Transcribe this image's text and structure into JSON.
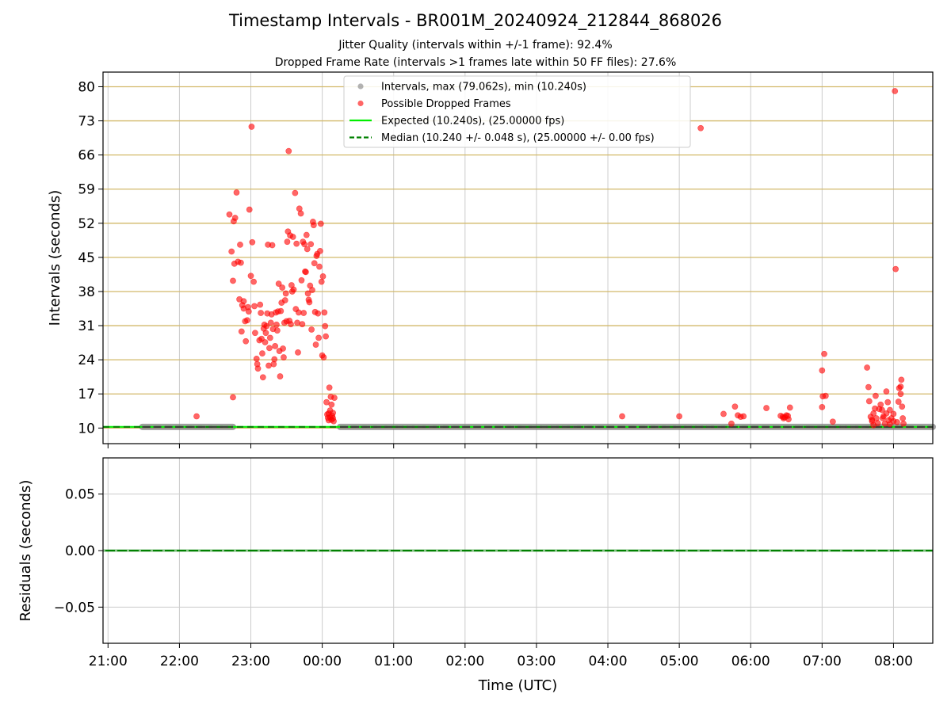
{
  "title": "Timestamp Intervals - BR001M_20240924_212844_868026",
  "subtitle_lines": [
    "Jitter Quality (intervals within +/-1 frame): 92.4%",
    "Dropped Frame Rate (intervals >1 frames late within 50 FF files): 27.6%"
  ],
  "colors": {
    "dropped": "#ff0000",
    "intervals": "#808080",
    "expected": "#00ee00",
    "median": "#008000",
    "hgrid_top": "#d2b96a",
    "grid": "#cccccc",
    "residual_points": "#80c080"
  },
  "chart_data": [
    {
      "type": "scatter",
      "name": "intervals",
      "xlabel": "",
      "ylabel": "Intervals (seconds)",
      "xlim": [
        -0.07,
        11.55
      ],
      "ylim": [
        6.8,
        83
      ],
      "x_ticks": [
        0,
        1,
        2,
        3,
        4,
        5,
        6,
        7,
        8,
        9,
        10,
        11
      ],
      "y_ticks": [
        10,
        17,
        24,
        31,
        38,
        45,
        52,
        59,
        66,
        73,
        80
      ],
      "grid": true,
      "legend_position": "top-center",
      "legend": [
        {
          "kind": "dot",
          "color": "#808080",
          "label": "Intervals, max (79.062s), min (10.240s)"
        },
        {
          "kind": "dot",
          "color": "#ff0000",
          "label": "Possible Dropped Frames"
        },
        {
          "kind": "solid",
          "color": "#00ee00",
          "label": "Expected (10.240s), (25.00000 fps)"
        },
        {
          "kind": "dashed",
          "color": "#008000",
          "label": "Median (10.240 +/- 0.048 s), (25.00000 +/- 0.00 fps)"
        }
      ],
      "expected_value": 10.24,
      "median_value": 10.24,
      "normal_interval_segments": [
        [
          0.48,
          1.75
        ],
        [
          3.25,
          11.55
        ]
      ],
      "series": [
        {
          "name": "Possible Dropped Frames",
          "points": [
            [
              1.24,
              12.4
            ],
            [
              1.75,
              16.3
            ],
            [
              1.7,
              53.8
            ],
            [
              1.73,
              46.2
            ],
            [
              1.78,
              53.1
            ],
            [
              1.8,
              58.3
            ],
            [
              1.76,
              52.4
            ],
            [
              1.75,
              40.2
            ],
            [
              1.77,
              43.7
            ],
            [
              1.82,
              44.1
            ],
            [
              1.86,
              43.9
            ],
            [
              1.85,
              47.6
            ],
            [
              1.84,
              36.4
            ],
            [
              1.88,
              35.2
            ],
            [
              1.9,
              34.5
            ],
            [
              1.87,
              29.8
            ],
            [
              1.92,
              31.9
            ],
            [
              1.93,
              27.8
            ],
            [
              1.95,
              32.1
            ],
            [
              1.9,
              36.0
            ],
            [
              1.96,
              34.8
            ],
            [
              1.97,
              33.9
            ],
            [
              1.98,
              54.8
            ],
            [
              2.0,
              41.2
            ],
            [
              2.02,
              48.1
            ],
            [
              2.01,
              71.8
            ],
            [
              2.04,
              40.0
            ],
            [
              2.05,
              35.0
            ],
            [
              2.06,
              29.5
            ],
            [
              2.08,
              24.2
            ],
            [
              2.09,
              23.1
            ],
            [
              2.1,
              22.2
            ],
            [
              2.12,
              28.0
            ],
            [
              2.13,
              35.3
            ],
            [
              2.14,
              33.6
            ],
            [
              2.15,
              28.3
            ],
            [
              2.16,
              25.3
            ],
            [
              2.17,
              20.4
            ],
            [
              2.18,
              30.4
            ],
            [
              2.19,
              31.2
            ],
            [
              2.2,
              27.6
            ],
            [
              2.21,
              29.5
            ],
            [
              2.22,
              30.9
            ],
            [
              2.23,
              33.5
            ],
            [
              2.24,
              47.6
            ],
            [
              2.25,
              22.8
            ],
            [
              2.26,
              26.4
            ],
            [
              2.27,
              28.5
            ],
            [
              2.28,
              31.6
            ],
            [
              2.29,
              33.3
            ],
            [
              2.3,
              47.5
            ],
            [
              2.31,
              30.3
            ],
            [
              2.32,
              23.1
            ],
            [
              2.33,
              24.1
            ],
            [
              2.34,
              26.8
            ],
            [
              2.35,
              33.7
            ],
            [
              2.36,
              31.2
            ],
            [
              2.37,
              30.0
            ],
            [
              2.38,
              33.9
            ],
            [
              2.39,
              39.6
            ],
            [
              2.4,
              25.8
            ],
            [
              2.41,
              20.6
            ],
            [
              2.42,
              34.0
            ],
            [
              2.43,
              35.7
            ],
            [
              2.44,
              38.8
            ],
            [
              2.45,
              26.3
            ],
            [
              2.46,
              24.5
            ],
            [
              2.47,
              31.6
            ],
            [
              2.48,
              36.2
            ],
            [
              2.49,
              37.6
            ],
            [
              2.5,
              31.9
            ],
            [
              2.51,
              48.2
            ],
            [
              2.52,
              50.3
            ],
            [
              2.53,
              66.8
            ],
            [
              2.54,
              32.0
            ],
            [
              2.55,
              49.5
            ],
            [
              2.56,
              31.3
            ],
            [
              2.57,
              39.3
            ],
            [
              2.58,
              38.0
            ],
            [
              2.59,
              49.2
            ],
            [
              2.6,
              38.4
            ],
            [
              2.62,
              58.2
            ],
            [
              2.63,
              34.4
            ],
            [
              2.64,
              47.8
            ],
            [
              2.65,
              31.6
            ],
            [
              2.66,
              25.5
            ],
            [
              2.67,
              33.7
            ],
            [
              2.68,
              55.0
            ],
            [
              2.7,
              54.0
            ],
            [
              2.71,
              40.3
            ],
            [
              2.72,
              31.3
            ],
            [
              2.73,
              48.2
            ],
            [
              2.74,
              33.6
            ],
            [
              2.75,
              47.7
            ],
            [
              2.76,
              42.1
            ],
            [
              2.77,
              42.0
            ],
            [
              2.78,
              49.6
            ],
            [
              2.79,
              46.7
            ],
            [
              2.8,
              37.6
            ],
            [
              2.81,
              36.3
            ],
            [
              2.82,
              35.8
            ],
            [
              2.83,
              39.2
            ],
            [
              2.84,
              47.7
            ],
            [
              2.85,
              30.2
            ],
            [
              2.86,
              38.3
            ],
            [
              2.87,
              52.3
            ],
            [
              2.88,
              51.6
            ],
            [
              2.89,
              43.8
            ],
            [
              2.9,
              33.8
            ],
            [
              2.91,
              27.1
            ],
            [
              2.92,
              45.3
            ],
            [
              2.93,
              45.7
            ],
            [
              2.94,
              33.5
            ],
            [
              2.95,
              28.5
            ],
            [
              2.96,
              43.1
            ],
            [
              2.97,
              46.3
            ],
            [
              2.98,
              51.9
            ],
            [
              2.99,
              40.0
            ],
            [
              3.0,
              24.9
            ],
            [
              3.01,
              41.1
            ],
            [
              3.02,
              24.5
            ],
            [
              3.03,
              33.7
            ],
            [
              3.04,
              30.9
            ],
            [
              3.05,
              28.8
            ],
            [
              3.06,
              15.3
            ],
            [
              3.07,
              12.8
            ],
            [
              3.08,
              12.1
            ],
            [
              3.09,
              11.6
            ],
            [
              3.1,
              18.3
            ],
            [
              3.11,
              13.6
            ],
            [
              3.12,
              16.4
            ],
            [
              3.13,
              14.8
            ],
            [
              3.14,
              12.5
            ],
            [
              3.15,
              13.1
            ],
            [
              3.16,
              11.4
            ],
            [
              3.17,
              16.2
            ],
            [
              3.11,
              12.2
            ],
            [
              3.13,
              11.7
            ],
            [
              3.09,
              13.0
            ],
            [
              3.15,
              12.0
            ],
            [
              7.2,
              12.4
            ],
            [
              8.0,
              12.4
            ],
            [
              8.3,
              71.5
            ],
            [
              8.62,
              12.9
            ],
            [
              8.73,
              10.9
            ],
            [
              8.78,
              14.4
            ],
            [
              8.82,
              12.6
            ],
            [
              8.86,
              12.3
            ],
            [
              8.9,
              12.4
            ],
            [
              9.22,
              14.1
            ],
            [
              9.42,
              12.5
            ],
            [
              9.46,
              12.0
            ],
            [
              9.5,
              12.6
            ],
            [
              9.53,
              11.8
            ],
            [
              9.55,
              14.2
            ],
            [
              9.45,
              12.3
            ],
            [
              9.48,
              12.2
            ],
            [
              9.52,
              12.5
            ],
            [
              10.0,
              14.3
            ],
            [
              10.01,
              16.5
            ],
            [
              10.0,
              21.8
            ],
            [
              10.03,
              25.2
            ],
            [
              10.05,
              16.6
            ],
            [
              10.15,
              11.3
            ],
            [
              10.63,
              22.4
            ],
            [
              10.65,
              18.4
            ],
            [
              10.66,
              15.5
            ],
            [
              10.68,
              12.3
            ],
            [
              10.7,
              11.4
            ],
            [
              10.72,
              13.0
            ],
            [
              10.74,
              14.0
            ],
            [
              10.75,
              16.6
            ],
            [
              10.76,
              12.0
            ],
            [
              10.78,
              11.0
            ],
            [
              10.8,
              13.9
            ],
            [
              10.82,
              14.8
            ],
            [
              10.84,
              13.7
            ],
            [
              10.86,
              12.4
            ],
            [
              10.88,
              10.9
            ],
            [
              10.9,
              17.5
            ],
            [
              10.92,
              15.3
            ],
            [
              10.93,
              11.6
            ],
            [
              10.95,
              13.7
            ],
            [
              10.97,
              12.0
            ],
            [
              11.0,
              12.9
            ],
            [
              11.02,
              79.1
            ],
            [
              11.03,
              42.6
            ],
            [
              11.05,
              11.2
            ],
            [
              11.07,
              15.4
            ],
            [
              11.08,
              18.2
            ],
            [
              11.1,
              17.0
            ],
            [
              11.1,
              18.5
            ],
            [
              11.11,
              19.9
            ],
            [
              11.12,
              14.4
            ],
            [
              11.13,
              12.0
            ],
            [
              11.14,
              10.9
            ],
            [
              10.7,
              11.7
            ],
            [
              10.72,
              10.6
            ],
            [
              10.85,
              12.0
            ],
            [
              10.9,
              13.0
            ],
            [
              10.95,
              10.8
            ],
            [
              11.0,
              11.4
            ]
          ]
        }
      ]
    },
    {
      "type": "scatter",
      "name": "residuals",
      "xlabel": "Time (UTC)",
      "ylabel": "Residuals (seconds)",
      "xlim": [
        -0.07,
        11.55
      ],
      "ylim": [
        -0.082,
        0.082
      ],
      "x_ticks": [
        0,
        1,
        2,
        3,
        4,
        5,
        6,
        7,
        8,
        9,
        10,
        11
      ],
      "x_tick_labels": [
        "21:00",
        "22:00",
        "23:00",
        "00:00",
        "01:00",
        "02:00",
        "03:00",
        "04:00",
        "05:00",
        "06:00",
        "07:00",
        "08:00"
      ],
      "y_ticks": [
        -0.05,
        0.0,
        0.05
      ],
      "y_tick_labels": [
        "−0.05",
        "0.00",
        "0.05"
      ],
      "grid": true,
      "residual_value": 0.0
    }
  ]
}
